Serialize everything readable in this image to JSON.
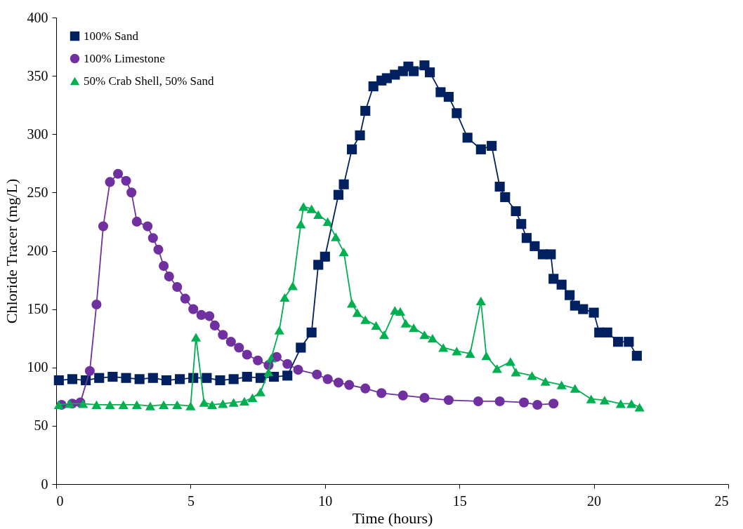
{
  "chart_data": {
    "type": "line",
    "xlabel": "Time (hours)",
    "ylabel": "Chloride Tracer (mg/L)",
    "xlim": [
      0,
      25
    ],
    "xticks": [
      0,
      5,
      10,
      15,
      20,
      25
    ],
    "ylim": [
      0,
      400
    ],
    "yticks": [
      0,
      50,
      100,
      150,
      200,
      250,
      300,
      350,
      400
    ],
    "grid": false,
    "legend": "top left",
    "line_style": "solid",
    "series": [
      {
        "name": "100% Sand",
        "color": "#002060",
        "marker": "square",
        "x": [
          0.1,
          0.6,
          1.1,
          1.6,
          2.1,
          2.6,
          3.1,
          3.6,
          4.1,
          4.6,
          5.1,
          5.6,
          6.1,
          6.6,
          7.1,
          7.6,
          8.1,
          8.6,
          9.1,
          9.5,
          9.75,
          10.0,
          10.5,
          10.7,
          11.0,
          11.3,
          11.5,
          11.8,
          12.1,
          12.3,
          12.6,
          12.9,
          13.1,
          13.3,
          13.7,
          13.9,
          14.3,
          14.6,
          14.9,
          15.3,
          15.8,
          16.2,
          16.5,
          16.7,
          17.1,
          17.3,
          17.5,
          17.8,
          18.1,
          18.4,
          18.5,
          18.8,
          19.1,
          19.3,
          19.6,
          20.0,
          20.2,
          20.5,
          20.9,
          21.3,
          21.6
        ],
        "values": [
          89,
          90,
          89,
          91,
          92,
          91,
          90,
          91,
          89,
          90,
          91,
          91,
          89,
          90,
          92,
          91,
          92,
          93,
          117,
          130,
          188,
          195,
          248,
          257,
          287,
          299,
          320,
          341,
          346,
          348,
          351,
          354,
          358,
          354,
          359,
          353,
          336,
          332,
          318,
          297,
          287,
          290,
          255,
          246,
          234,
          223,
          211,
          204,
          197,
          197,
          176,
          171,
          162,
          153,
          150,
          147,
          130,
          130,
          122,
          122,
          110
        ]
      },
      {
        "name": "100% Limestone",
        "color": "#7030a0",
        "marker": "circle",
        "x": [
          0.2,
          0.6,
          0.9,
          1.25,
          1.5,
          1.75,
          2.0,
          2.3,
          2.6,
          2.8,
          3.0,
          3.4,
          3.6,
          3.8,
          4.0,
          4.2,
          4.5,
          4.8,
          5.1,
          5.4,
          5.7,
          5.9,
          6.2,
          6.5,
          6.8,
          7.1,
          7.5,
          7.9,
          8.2,
          8.6,
          9.0,
          9.7,
          10.1,
          10.5,
          10.9,
          11.5,
          12.1,
          12.9,
          13.7,
          14.6,
          15.7,
          16.5,
          17.4,
          17.9,
          18.5
        ],
        "values": [
          68,
          69,
          70,
          97,
          154,
          221,
          259,
          266,
          260,
          250,
          225,
          221,
          211,
          201,
          187,
          178,
          169,
          159,
          150,
          145,
          144,
          136,
          128,
          122,
          117,
          111,
          106,
          102,
          109,
          103,
          98,
          94,
          90,
          87,
          85,
          82,
          78,
          76,
          74,
          72,
          71,
          71,
          70,
          68,
          69
        ]
      },
      {
        "name": "50% Crab Shell, 50% Sand",
        "color": "#00b050",
        "marker": "triangle",
        "x": [
          0.1,
          0.5,
          1.0,
          1.5,
          2.0,
          2.5,
          3.0,
          3.5,
          4.0,
          4.5,
          5.0,
          5.2,
          5.5,
          5.8,
          6.2,
          6.6,
          7.0,
          7.3,
          7.6,
          7.9,
          8.0,
          8.3,
          8.5,
          8.8,
          9.1,
          9.2,
          9.5,
          9.75,
          10.1,
          10.4,
          10.7,
          11.0,
          11.2,
          11.5,
          11.9,
          12.2,
          12.6,
          12.8,
          13.0,
          13.3,
          13.7,
          14.0,
          14.4,
          14.9,
          15.4,
          15.8,
          16.0,
          16.4,
          16.9,
          17.1,
          17.7,
          18.2,
          18.8,
          19.3,
          19.9,
          20.4,
          21.0,
          21.4,
          21.7
        ],
        "values": [
          68,
          69,
          69,
          68,
          68,
          68,
          68,
          67,
          68,
          68,
          67,
          126,
          70,
          68,
          69,
          70,
          71,
          74,
          79,
          96,
          108,
          132,
          160,
          170,
          223,
          238,
          236,
          231,
          225,
          212,
          199,
          155,
          147,
          141,
          136,
          128,
          149,
          148,
          138,
          134,
          128,
          125,
          117,
          114,
          112,
          157,
          110,
          99,
          105,
          96,
          93,
          88,
          85,
          82,
          73,
          72,
          69,
          69,
          66
        ]
      }
    ]
  }
}
